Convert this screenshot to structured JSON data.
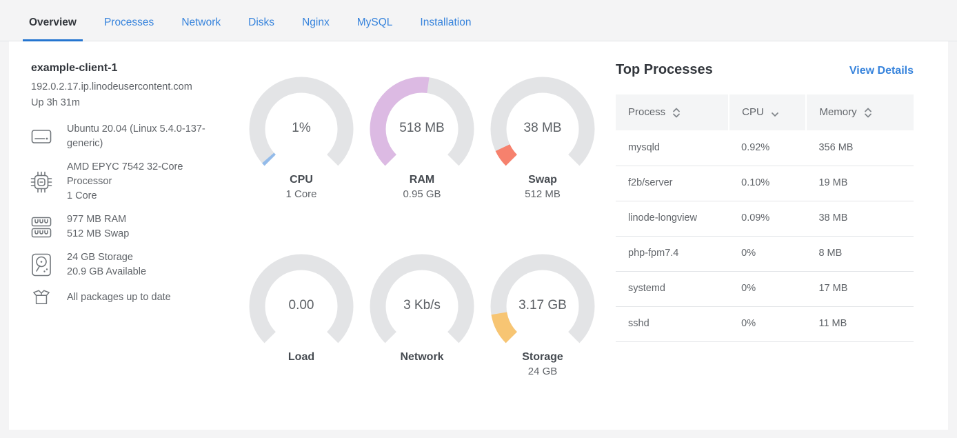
{
  "tabs": [
    {
      "label": "Overview",
      "active": true
    },
    {
      "label": "Processes",
      "active": false
    },
    {
      "label": "Network",
      "active": false
    },
    {
      "label": "Disks",
      "active": false
    },
    {
      "label": "Nginx",
      "active": false
    },
    {
      "label": "MySQL",
      "active": false
    },
    {
      "label": "Installation",
      "active": false
    }
  ],
  "host": {
    "name": "example-client-1",
    "domain": "192.0.2.17.ip.linodeusercontent.com",
    "uptime": "Up 3h 31m",
    "specs": [
      {
        "icon": "os-icon",
        "lines": [
          "Ubuntu 20.04 (Linux 5.4.0-137-generic)"
        ]
      },
      {
        "icon": "cpu-icon",
        "lines": [
          "AMD EPYC 7542 32-Core Processor",
          "1 Core"
        ]
      },
      {
        "icon": "memory-icon",
        "lines": [
          "977 MB RAM",
          "512 MB Swap"
        ]
      },
      {
        "icon": "disk-icon",
        "lines": [
          "24 GB Storage",
          "20.9 GB Available"
        ]
      },
      {
        "icon": "package-icon",
        "lines": [
          "All packages up to date"
        ]
      }
    ]
  },
  "gauges": [
    {
      "id": "cpu",
      "value": "1%",
      "label": "CPU",
      "sublabel": "1 Core",
      "percent": 1.5,
      "color": "#93bbea"
    },
    {
      "id": "ram",
      "value": "518 MB",
      "label": "RAM",
      "sublabel": "0.95 GB",
      "percent": 53,
      "color": "#dcbae3"
    },
    {
      "id": "swap",
      "value": "38 MB",
      "label": "Swap",
      "sublabel": "512 MB",
      "percent": 7.4,
      "color": "#f6816d"
    },
    {
      "id": "load",
      "value": "0.00",
      "label": "Load",
      "sublabel": "",
      "percent": 0,
      "color": "#93bbea"
    },
    {
      "id": "network",
      "value": "3 Kb/s",
      "label": "Network",
      "sublabel": "",
      "percent": 0,
      "color": "#93bbea"
    },
    {
      "id": "storage",
      "value": "3.17 GB",
      "label": "Storage",
      "sublabel": "24 GB",
      "percent": 13.2,
      "color": "#f7c573"
    }
  ],
  "processes": {
    "title": "Top Processes",
    "view_details": "View Details",
    "columns": [
      {
        "label": "Process",
        "sort": "both"
      },
      {
        "label": "CPU",
        "sort": "desc"
      },
      {
        "label": "Memory",
        "sort": "both"
      }
    ],
    "rows": [
      {
        "process": "mysqld",
        "cpu": "0.92%",
        "memory": "356 MB"
      },
      {
        "process": "f2b/server",
        "cpu": "0.10%",
        "memory": "19 MB"
      },
      {
        "process": "linode-longview",
        "cpu": "0.09%",
        "memory": "38 MB"
      },
      {
        "process": "php-fpm7.4",
        "cpu": "0%",
        "memory": "8 MB"
      },
      {
        "process": "systemd",
        "cpu": "0%",
        "memory": "17 MB"
      },
      {
        "process": "sshd",
        "cpu": "0%",
        "memory": "11 MB"
      }
    ]
  },
  "colors": {
    "accent_blue": "#3683dc",
    "tab_underline": "#2575d0",
    "gauge_track": "#e3e4e6",
    "cpu_fill": "#93bbea",
    "ram_fill": "#dcbae3",
    "swap_fill": "#f6816d",
    "storage_fill": "#f7c573",
    "text_dark": "#32363c",
    "text_gray": "#606469"
  }
}
